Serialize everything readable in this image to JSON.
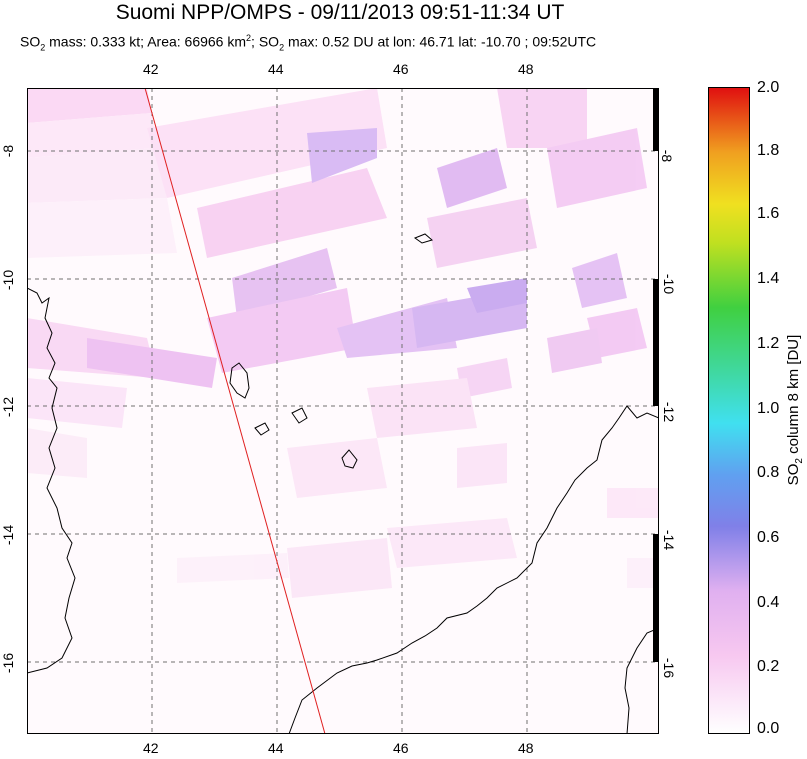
{
  "title": "Suomi NPP/OMPS - 09/11/2013 09:51-11:34 UT",
  "subtitle": {
    "p1": "SO",
    "sub1": "2",
    "p2": " mass: 0.333 kt; Area: 66966 km",
    "sup": "2",
    "p3": "; SO",
    "sub2": "2",
    "p4": " max: 0.52 DU at lon: 46.71 lat: -10.70 ; 09:52UTC"
  },
  "lon_ticks": [
    "42",
    "44",
    "46",
    "48"
  ],
  "lat_ticks": [
    "-8",
    "-10",
    "-12",
    "-14",
    "-16"
  ],
  "colorbar": {
    "ticks": [
      "2.0",
      "1.8",
      "1.6",
      "1.4",
      "1.2",
      "1.0",
      "0.8",
      "0.6",
      "0.4",
      "0.2",
      "0.0"
    ],
    "label_main": "SO",
    "label_sub": "2",
    "label_rest": " column 8 km [DU]"
  },
  "colors": {
    "low": "#ffffff",
    "pink": "#f7c8f0",
    "lavender": "#c8a8f0",
    "blue": "#6060e0",
    "cyan": "#40e0f0",
    "green": "#40d040",
    "yellow": "#f0e020",
    "orange": "#f08020",
    "red": "#e01010",
    "orbit_line": "#e02020"
  }
}
